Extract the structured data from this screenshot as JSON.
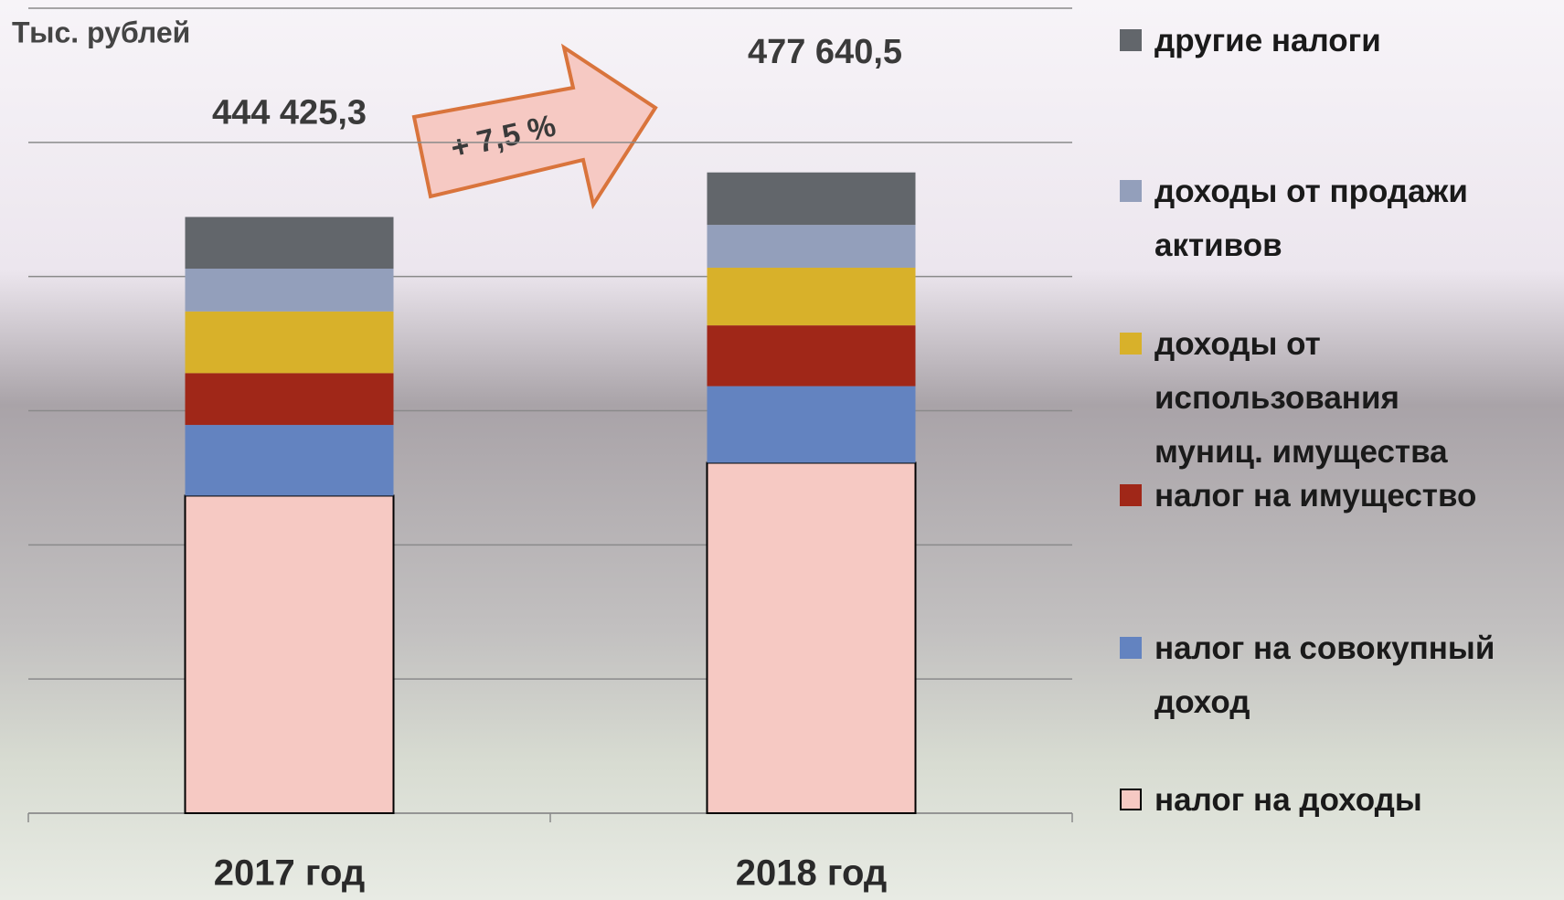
{
  "chart_data": {
    "type": "stacked_bar",
    "y_axis_label": "Тыс. рублей",
    "categories": [
      "2017 год",
      "2018 год"
    ],
    "series": [
      {
        "name": "налог на доходы",
        "color": "#f6c9c3",
        "values": [
          236700,
          261200
        ]
      },
      {
        "name": "налог на совокупный доход",
        "color": "#6383c0",
        "values": [
          52700,
          57100
        ]
      },
      {
        "name": "налог на имущество",
        "color": "#a02718",
        "values": [
          38600,
          45300
        ]
      },
      {
        "name": "доходы от использования муниц. имущества",
        "color": "#d8b12a",
        "values": [
          46000,
          43000
        ]
      },
      {
        "name": "доходы от продажи активов",
        "color": "#939fbb",
        "values": [
          31900,
          31900
        ]
      },
      {
        "name": "другие налоги",
        "color": "#62666b",
        "values": [
          38500,
          39100
        ]
      }
    ],
    "totals": {
      "values": [
        444425.3,
        477640.5
      ],
      "value_labels": [
        "444 425,3",
        "477 640,5"
      ]
    },
    "annotation": "+ 7,5 %",
    "ylim": [
      0,
      600000
    ],
    "yticks": [
      0,
      100000,
      200000,
      300000,
      400000,
      500000,
      600000
    ],
    "grid": true,
    "legend": "right"
  }
}
